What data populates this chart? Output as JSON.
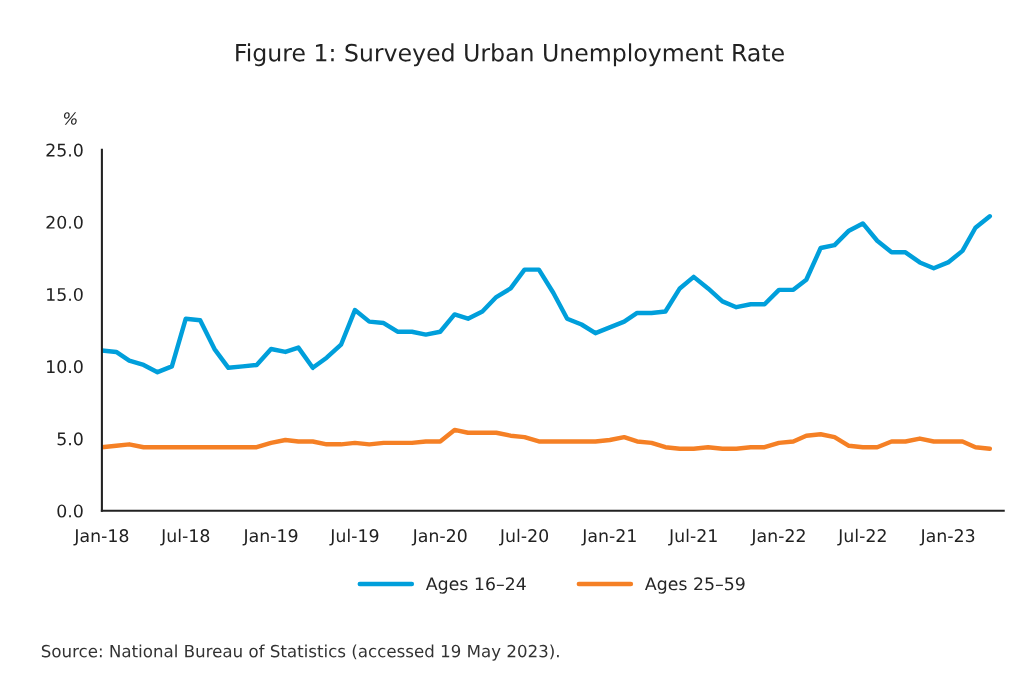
{
  "chart_data": {
    "type": "line",
    "title": "Figure 1: Surveyed Urban Unemployment Rate",
    "ylabel": "%",
    "x": [
      "2018-01",
      "2018-02",
      "2018-03",
      "2018-04",
      "2018-05",
      "2018-06",
      "2018-07",
      "2018-08",
      "2018-09",
      "2018-10",
      "2018-11",
      "2018-12",
      "2019-01",
      "2019-02",
      "2019-03",
      "2019-04",
      "2019-05",
      "2019-06",
      "2019-07",
      "2019-08",
      "2019-09",
      "2019-10",
      "2019-11",
      "2019-12",
      "2020-01",
      "2020-02",
      "2020-03",
      "2020-04",
      "2020-05",
      "2020-06",
      "2020-07",
      "2020-08",
      "2020-09",
      "2020-10",
      "2020-11",
      "2020-12",
      "2021-01",
      "2021-02",
      "2021-03",
      "2021-04",
      "2021-05",
      "2021-06",
      "2021-07",
      "2021-08",
      "2021-09",
      "2021-10",
      "2021-11",
      "2021-12",
      "2022-01",
      "2022-02",
      "2022-03",
      "2022-04",
      "2022-05",
      "2022-06",
      "2022-07",
      "2022-08",
      "2022-09",
      "2022-10",
      "2022-11",
      "2022-12",
      "2023-01",
      "2023-02",
      "2023-03",
      "2023-04"
    ],
    "series": [
      {
        "name": "Ages 16–24",
        "color": "#009fdb",
        "values": [
          11.1,
          11.0,
          10.4,
          10.1,
          9.6,
          10.0,
          13.3,
          13.2,
          11.2,
          9.9,
          10.0,
          10.1,
          11.2,
          11.0,
          11.3,
          9.9,
          10.6,
          11.5,
          13.9,
          13.1,
          13.0,
          12.4,
          12.4,
          12.2,
          12.4,
          13.6,
          13.3,
          13.8,
          14.8,
          15.4,
          16.7,
          16.7,
          15.1,
          13.3,
          12.9,
          12.3,
          12.7,
          13.1,
          13.7,
          13.7,
          13.8,
          15.4,
          16.2,
          15.4,
          14.5,
          14.1,
          14.3,
          14.3,
          15.3,
          15.3,
          16.0,
          18.2,
          18.4,
          19.4,
          19.9,
          18.7,
          17.9,
          17.9,
          17.2,
          16.8,
          17.2,
          18.0,
          19.6,
          20.4
        ]
      },
      {
        "name": "Ages 25–59",
        "color": "#f58025",
        "values": [
          4.4,
          4.5,
          4.6,
          4.4,
          4.4,
          4.4,
          4.4,
          4.4,
          4.4,
          4.4,
          4.4,
          4.4,
          4.7,
          4.9,
          4.8,
          4.8,
          4.6,
          4.6,
          4.7,
          4.6,
          4.7,
          4.7,
          4.7,
          4.8,
          4.8,
          5.6,
          5.4,
          5.4,
          5.4,
          5.2,
          5.1,
          4.8,
          4.8,
          4.8,
          4.8,
          4.8,
          4.9,
          5.1,
          4.8,
          4.7,
          4.4,
          4.3,
          4.3,
          4.4,
          4.3,
          4.3,
          4.4,
          4.4,
          4.7,
          4.8,
          5.2,
          5.3,
          5.1,
          4.5,
          4.4,
          4.4,
          4.8,
          4.8,
          5.0,
          4.8,
          4.8,
          4.8,
          4.4,
          4.3
        ]
      }
    ],
    "xlim": [
      "2018-01",
      "2023-05"
    ],
    "xticks": [
      {
        "value": "2018-01",
        "label": "Jan-18"
      },
      {
        "value": "2018-07",
        "label": "Jul-18"
      },
      {
        "value": "2019-01",
        "label": "Jan-19"
      },
      {
        "value": "2019-07",
        "label": "Jul-19"
      },
      {
        "value": "2020-01",
        "label": "Jan-20"
      },
      {
        "value": "2020-07",
        "label": "Jul-20"
      },
      {
        "value": "2021-01",
        "label": "Jan-21"
      },
      {
        "value": "2021-07",
        "label": "Jul-21"
      },
      {
        "value": "2022-01",
        "label": "Jan-22"
      },
      {
        "value": "2022-07",
        "label": "Jul-22"
      },
      {
        "value": "2023-01",
        "label": "Jan-23"
      }
    ],
    "ylim": [
      0,
      25
    ],
    "yticks": [
      {
        "value": 0,
        "label": "0.0"
      },
      {
        "value": 5,
        "label": "5.0"
      },
      {
        "value": 10,
        "label": "10.0"
      },
      {
        "value": 15,
        "label": "15.0"
      },
      {
        "value": 20,
        "label": "20.0"
      },
      {
        "value": 25,
        "label": "25.0"
      }
    ],
    "grid": false,
    "legend": "bottom",
    "marker": "none",
    "line_style": "solid",
    "annotations": [
      "Source: National Bureau of Statistics (accessed 19 May 2023)."
    ]
  }
}
